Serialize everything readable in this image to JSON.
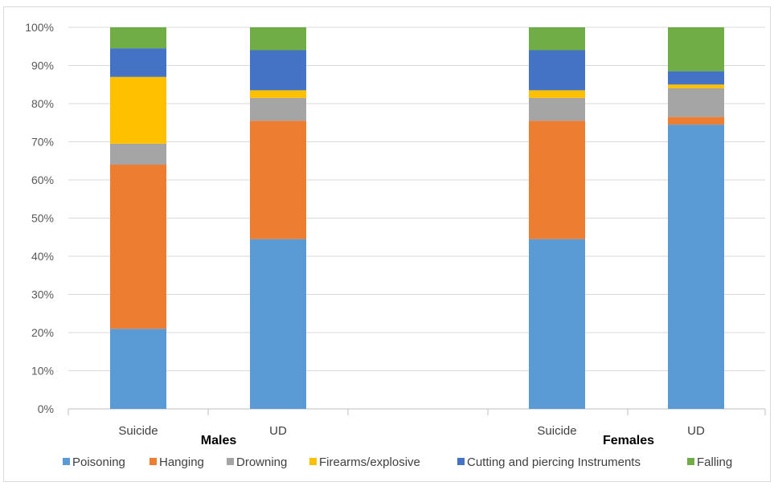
{
  "chart_data": {
    "type": "bar",
    "stacked": true,
    "percent": true,
    "categories": [
      "Suicide",
      "UD",
      "Suicide",
      "UD"
    ],
    "groups": [
      "Males",
      "Males",
      "Females",
      "Females"
    ],
    "y_ticks": [
      "0%",
      "10%",
      "20%",
      "30%",
      "40%",
      "50%",
      "60%",
      "70%",
      "80%",
      "90%",
      "100%"
    ],
    "ylim": [
      0,
      100
    ],
    "grid": true,
    "legend_position": "bottom",
    "series": [
      {
        "name": "Poisoning",
        "color": "#5B9BD5",
        "values": [
          21,
          44.5,
          44.5,
          74.5
        ]
      },
      {
        "name": "Hanging",
        "color": "#ED7D31",
        "values": [
          43,
          31,
          31,
          2
        ]
      },
      {
        "name": "Drowning",
        "color": "#A5A5A5",
        "values": [
          5.5,
          6,
          6,
          7.5
        ]
      },
      {
        "name": "Firearms/explosive",
        "color": "#FFC000",
        "values": [
          17.5,
          2,
          2,
          1
        ]
      },
      {
        "name": "Cutting and piercing Instruments",
        "color": "#4472C4",
        "values": [
          7.5,
          10.5,
          10.5,
          3.5
        ]
      },
      {
        "name": "Falling",
        "color": "#70AD47",
        "values": [
          5.5,
          6,
          6,
          11.5
        ]
      }
    ]
  }
}
